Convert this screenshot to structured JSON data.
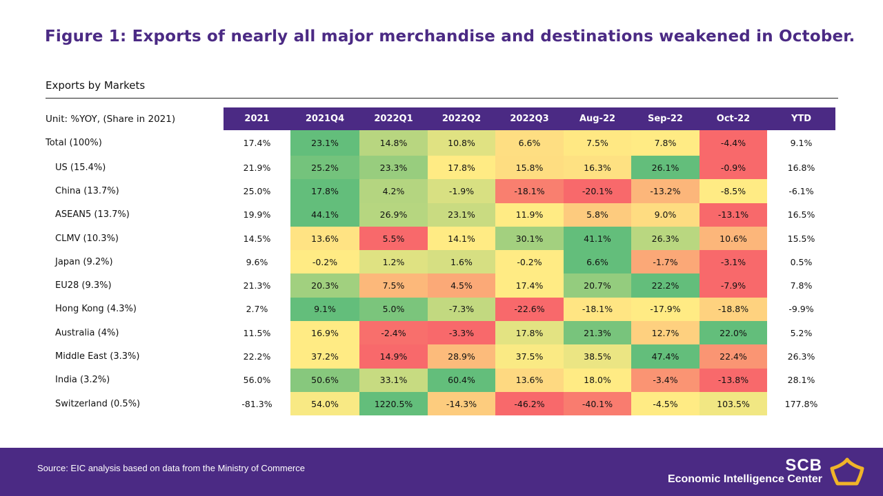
{
  "title": "Figure 1: Exports of nearly all major merchandise and destinations weakened in October.",
  "subtitle": "Exports by Markets",
  "footer": {
    "source": "Source: EIC analysis based on data from the Ministry of Commerce",
    "brand": "SCB",
    "brand_sub": "Economic Intelligence Center",
    "logo_icon": "scb-emblem-icon"
  },
  "colors": {
    "header_bg": "#4b2a84",
    "footer_bg": "#4b2a84",
    "title": "#4b2a84",
    "scale_low": "#f8696b",
    "scale_mid": "#ffeb84",
    "scale_high": "#63be7b"
  },
  "chart_data": {
    "type": "table",
    "unit_label": "Unit: %YOY, (Share in 2021)",
    "columns": [
      "2021",
      "2021Q4",
      "2022Q1",
      "2022Q2",
      "2022Q3",
      "Aug-22",
      "Sep-22",
      "Oct-22",
      "YTD"
    ],
    "colored_columns": [
      "2021Q4",
      "2022Q1",
      "2022Q2",
      "2022Q3",
      "Aug-22",
      "Sep-22",
      "Oct-22"
    ],
    "rows": [
      {
        "label": "Total (100%)",
        "values": [
          "17.4%",
          "23.1%",
          "14.8%",
          "10.8%",
          "6.6%",
          "7.5%",
          "7.8%",
          "-4.4%",
          "9.1%"
        ]
      },
      {
        "label": "US (15.4%)",
        "values": [
          "21.9%",
          "25.2%",
          "23.3%",
          "17.8%",
          "15.8%",
          "16.3%",
          "26.1%",
          "-0.9%",
          "16.8%"
        ]
      },
      {
        "label": "China (13.7%)",
        "values": [
          "25.0%",
          "17.8%",
          "4.2%",
          "-1.9%",
          "-18.1%",
          "-20.1%",
          "-13.2%",
          "-8.5%",
          "-6.1%"
        ]
      },
      {
        "label": "ASEAN5 (13.7%)",
        "values": [
          "19.9%",
          "44.1%",
          "26.9%",
          "23.1%",
          "11.9%",
          "5.8%",
          "9.0%",
          "-13.1%",
          "16.5%"
        ]
      },
      {
        "label": "CLMV (10.3%)",
        "values": [
          "14.5%",
          "13.6%",
          "5.5%",
          "14.1%",
          "30.1%",
          "41.1%",
          "26.3%",
          "10.6%",
          "15.5%"
        ]
      },
      {
        "label": "Japan (9.2%)",
        "values": [
          "9.6%",
          "-0.2%",
          "1.2%",
          "1.6%",
          "-0.2%",
          "6.6%",
          "-1.7%",
          "-3.1%",
          "0.5%"
        ]
      },
      {
        "label": "EU28 (9.3%)",
        "values": [
          "21.3%",
          "20.3%",
          "7.5%",
          "4.5%",
          "17.4%",
          "20.7%",
          "22.2%",
          "-7.9%",
          "7.8%"
        ]
      },
      {
        "label": "Hong Kong (4.3%)",
        "values": [
          "2.7%",
          "9.1%",
          "5.0%",
          "-7.3%",
          "-22.6%",
          "-18.1%",
          "-17.9%",
          "-18.8%",
          "-9.9%"
        ]
      },
      {
        "label": "Australia (4%)",
        "values": [
          "11.5%",
          "16.9%",
          "-2.4%",
          "-3.3%",
          "17.8%",
          "21.3%",
          "12.7%",
          "22.0%",
          "5.2%"
        ]
      },
      {
        "label": "Middle East (3.3%)",
        "values": [
          "22.2%",
          "37.2%",
          "14.9%",
          "28.9%",
          "37.5%",
          "38.5%",
          "47.4%",
          "22.4%",
          "26.3%"
        ]
      },
      {
        "label": "India (3.2%)",
        "values": [
          "56.0%",
          "50.6%",
          "33.1%",
          "60.4%",
          "13.6%",
          "18.0%",
          "-3.4%",
          "-13.8%",
          "28.1%"
        ]
      },
      {
        "label": "Switzerland (0.5%)",
        "values": [
          "-81.3%",
          "54.0%",
          "1220.5%",
          "-14.3%",
          "-46.2%",
          "-40.1%",
          "-4.5%",
          "103.5%",
          "177.8%"
        ]
      }
    ]
  }
}
